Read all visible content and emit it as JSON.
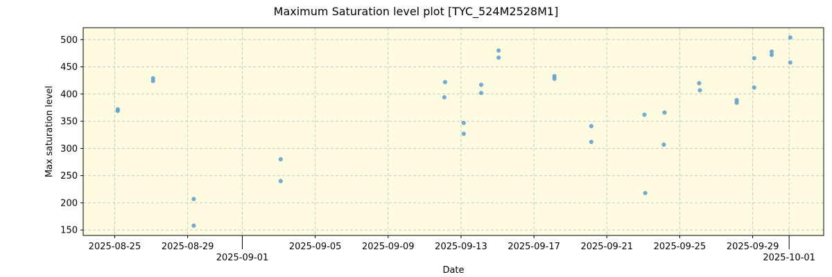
{
  "chart_data": {
    "type": "scatter",
    "title": "Maximum Saturation level plot [TYC_524M2528M1]",
    "xlabel": "Date",
    "ylabel": "Max saturation level",
    "xlim": [
      "2025-08-23T06:30",
      "2025-10-02T21:30"
    ],
    "ylim": [
      140,
      522
    ],
    "x_ticks": [
      "2025-08-25",
      "2025-08-29",
      "2025-09-01",
      "2025-09-05",
      "2025-09-09",
      "2025-09-13",
      "2025-09-17",
      "2025-09-21",
      "2025-09-25",
      "2025-09-29",
      "2025-10-01"
    ],
    "y_ticks": [
      150,
      200,
      250,
      300,
      350,
      400,
      450,
      500
    ],
    "grid": true,
    "background_color": "#fdfbe0",
    "point_color": "#5b9ec9",
    "points": [
      {
        "x": "2025-08-25T04:00",
        "y": 372
      },
      {
        "x": "2025-08-25T04:00",
        "y": 369
      },
      {
        "x": "2025-08-27T02:30",
        "y": 429
      },
      {
        "x": "2025-08-27T02:30",
        "y": 424
      },
      {
        "x": "2025-08-29T08:00",
        "y": 207
      },
      {
        "x": "2025-08-29T08:00",
        "y": 158
      },
      {
        "x": "2025-09-03T02:30",
        "y": 280
      },
      {
        "x": "2025-09-03T02:30",
        "y": 240
      },
      {
        "x": "2025-09-12T03:00",
        "y": 422
      },
      {
        "x": "2025-09-12T02:00",
        "y": 394
      },
      {
        "x": "2025-09-13T03:30",
        "y": 347
      },
      {
        "x": "2025-09-13T03:30",
        "y": 327
      },
      {
        "x": "2025-09-14T02:30",
        "y": 417
      },
      {
        "x": "2025-09-14T02:30",
        "y": 402
      },
      {
        "x": "2025-09-15T01:30",
        "y": 480
      },
      {
        "x": "2025-09-15T01:30",
        "y": 467
      },
      {
        "x": "2025-09-18T03:00",
        "y": 433
      },
      {
        "x": "2025-09-18T03:00",
        "y": 428
      },
      {
        "x": "2025-09-20T03:30",
        "y": 341
      },
      {
        "x": "2025-09-20T03:30",
        "y": 312
      },
      {
        "x": "2025-09-23T01:30",
        "y": 362
      },
      {
        "x": "2025-09-23T02:30",
        "y": 218
      },
      {
        "x": "2025-09-24T04:00",
        "y": 366
      },
      {
        "x": "2025-09-24T03:00",
        "y": 307
      },
      {
        "x": "2025-09-26T01:30",
        "y": 420
      },
      {
        "x": "2025-09-26T02:30",
        "y": 407
      },
      {
        "x": "2025-09-28T03:00",
        "y": 389
      },
      {
        "x": "2025-09-28T03:00",
        "y": 384
      },
      {
        "x": "2025-09-29T02:00",
        "y": 466
      },
      {
        "x": "2025-09-29T02:00",
        "y": 412
      },
      {
        "x": "2025-09-30T01:00",
        "y": 478
      },
      {
        "x": "2025-09-30T01:00",
        "y": 472
      },
      {
        "x": "2025-10-01T01:30",
        "y": 504
      },
      {
        "x": "2025-10-01T01:30",
        "y": 458
      }
    ]
  }
}
